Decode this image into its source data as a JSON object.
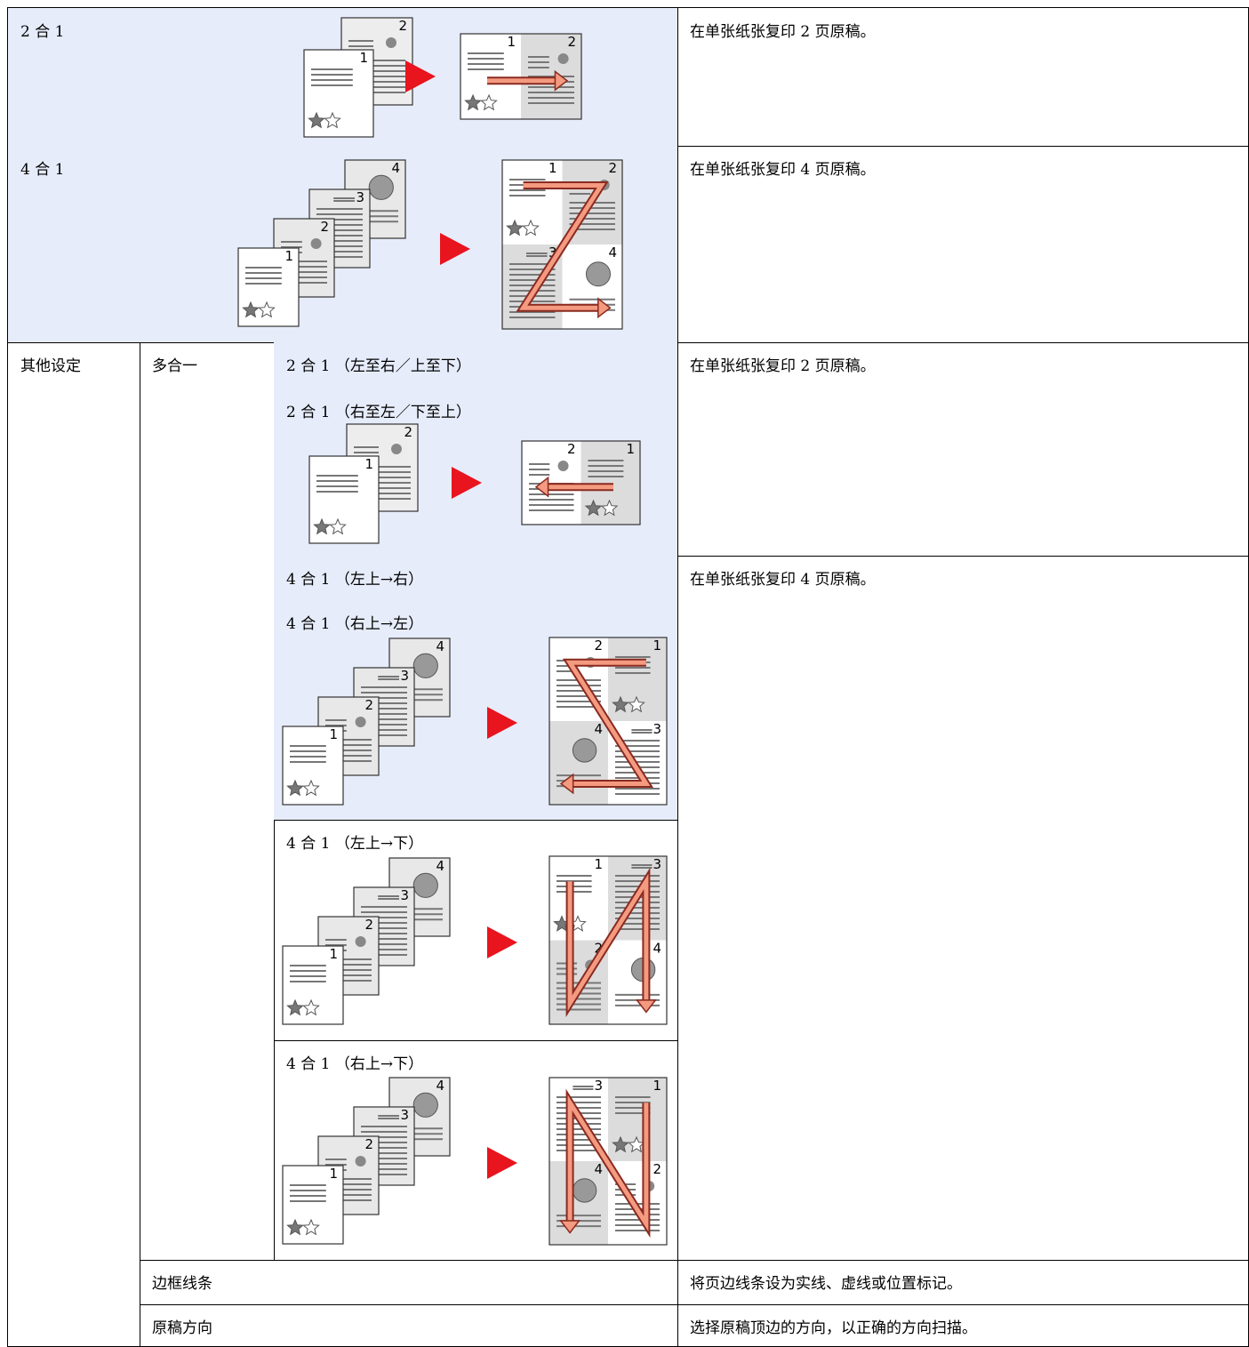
{
  "rows": [
    {
      "label": "2 合 1",
      "description": "在单张纸张复印 2 页原稿。"
    },
    {
      "label": "4 合 1",
      "description": "在单张纸张复印 4 页原稿。"
    }
  ],
  "other": {
    "label": "其他设定",
    "combine": {
      "label": "多合一",
      "options": [
        "2 合 1 （左至右／上至下）",
        "2 合 1 （右至左／下至上）",
        "4 合 1 （左上→右）",
        "4 合 1 （右上→左）",
        "4 合 1 （左上→下）",
        "4 合 1 （右上→下）"
      ],
      "descriptions": [
        "在单张纸张复印 2 页原稿。",
        "在单张纸张复印 4 页原稿。"
      ]
    },
    "border": {
      "label": "边框线条",
      "description": "将页边线条设为实线、虚线或位置标记。"
    },
    "orientation": {
      "label": "原稿方向",
      "description": "选择原稿顶边的方向，以正确的方向扫描。"
    }
  },
  "page_numbers": [
    "1",
    "2",
    "3",
    "4"
  ]
}
